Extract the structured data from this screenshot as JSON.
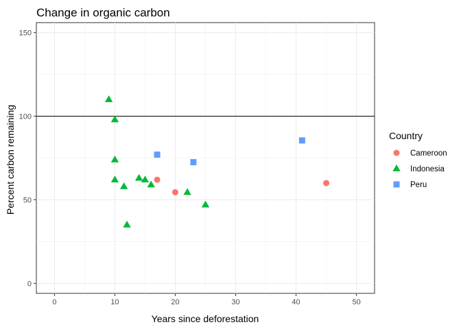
{
  "chart_data": {
    "type": "scatter",
    "title": "Change in organic carbon",
    "xlabel": "Years since deforestation",
    "ylabel": "Percent carbon remaining",
    "xlim": [
      -3,
      53
    ],
    "ylim": [
      -6,
      156
    ],
    "x_ticks": [
      0,
      10,
      20,
      30,
      40,
      50
    ],
    "y_ticks": [
      0,
      50,
      100,
      150
    ],
    "x_tick_labels": [
      "0",
      "10",
      "20",
      "30",
      "40",
      "50"
    ],
    "y_tick_labels": [
      "0",
      "50",
      "100",
      "150"
    ],
    "grid": true,
    "reference_line": {
      "y": 100
    },
    "legend": {
      "title": "Country",
      "position": "right"
    },
    "series": [
      {
        "name": "Cameroon",
        "marker": "circle",
        "color": "#F8766D",
        "points": [
          [
            17,
            62
          ],
          [
            20,
            54.5
          ],
          [
            45,
            60
          ]
        ]
      },
      {
        "name": "Indonesia",
        "marker": "triangle",
        "color": "#00BA38",
        "points": [
          [
            9,
            110
          ],
          [
            10,
            98
          ],
          [
            10,
            74
          ],
          [
            10,
            62
          ],
          [
            11.5,
            58
          ],
          [
            12,
            35
          ],
          [
            14,
            63
          ],
          [
            15,
            62
          ],
          [
            16,
            59
          ],
          [
            22,
            54.5
          ],
          [
            25,
            47
          ]
        ]
      },
      {
        "name": "Peru",
        "marker": "square",
        "color": "#619CFF",
        "points": [
          [
            17,
            77
          ],
          [
            23,
            72.5
          ],
          [
            41,
            85.5
          ]
        ]
      }
    ]
  }
}
